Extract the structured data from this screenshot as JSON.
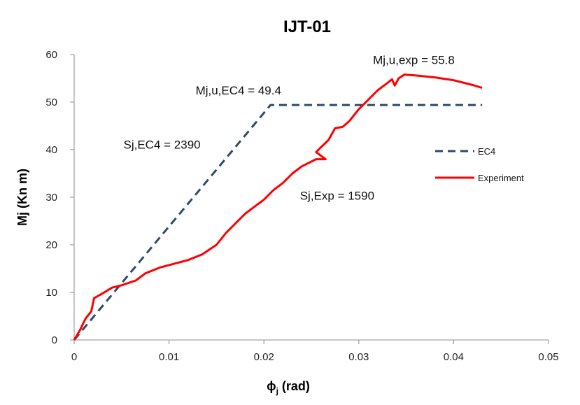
{
  "chart_data": {
    "type": "line",
    "title": "IJT-01",
    "xlabel_symbol": "ϕ",
    "xlabel_sub": "j",
    "xlabel_rest": " (rad)",
    "ylabel": "Mj (Kn m)",
    "xlim": [
      0,
      0.05
    ],
    "ylim": [
      0,
      60
    ],
    "xticks": [
      0,
      0.01,
      0.02,
      0.03,
      0.04,
      0.05
    ],
    "xtick_labels": [
      "0",
      "0.01",
      "0.02",
      "0.03",
      "0.04",
      "0.05"
    ],
    "yticks": [
      0,
      10,
      20,
      30,
      40,
      50,
      60
    ],
    "ytick_labels": [
      "0",
      "10",
      "20",
      "30",
      "40",
      "50",
      "60"
    ],
    "grid": false,
    "legend_position": "right",
    "series": [
      {
        "name": "EC4",
        "color": "#2f4a6d",
        "style": "dashed",
        "points": [
          [
            0.0,
            0.0
          ],
          [
            0.0207,
            49.4
          ],
          [
            0.043,
            49.4
          ]
        ]
      },
      {
        "name": "Experiment",
        "color": "#ff0000",
        "style": "solid",
        "points": [
          [
            0.0,
            0.0
          ],
          [
            0.0006,
            2.0
          ],
          [
            0.0012,
            4.5
          ],
          [
            0.0018,
            6.0
          ],
          [
            0.0021,
            8.8
          ],
          [
            0.003,
            9.8
          ],
          [
            0.004,
            11.0
          ],
          [
            0.005,
            11.5
          ],
          [
            0.0065,
            12.5
          ],
          [
            0.0075,
            14.0
          ],
          [
            0.009,
            15.2
          ],
          [
            0.0105,
            16.0
          ],
          [
            0.012,
            16.8
          ],
          [
            0.0135,
            18.0
          ],
          [
            0.015,
            20.0
          ],
          [
            0.016,
            22.5
          ],
          [
            0.017,
            24.5
          ],
          [
            0.018,
            26.5
          ],
          [
            0.019,
            28.0
          ],
          [
            0.02,
            29.5
          ],
          [
            0.021,
            31.5
          ],
          [
            0.022,
            33.0
          ],
          [
            0.023,
            35.0
          ],
          [
            0.024,
            36.5
          ],
          [
            0.025,
            37.5
          ],
          [
            0.0255,
            38.0
          ],
          [
            0.0265,
            38.0
          ],
          [
            0.0255,
            39.5
          ],
          [
            0.026,
            40.5
          ],
          [
            0.0268,
            42.0
          ],
          [
            0.0275,
            44.5
          ],
          [
            0.0283,
            44.8
          ],
          [
            0.029,
            46.0
          ],
          [
            0.03,
            48.5
          ],
          [
            0.031,
            50.5
          ],
          [
            0.032,
            52.5
          ],
          [
            0.033,
            54.0
          ],
          [
            0.0335,
            54.8
          ],
          [
            0.0338,
            53.5
          ],
          [
            0.0342,
            55.0
          ],
          [
            0.0348,
            55.8
          ],
          [
            0.036,
            55.6
          ],
          [
            0.038,
            55.2
          ],
          [
            0.04,
            54.6
          ],
          [
            0.042,
            53.6
          ],
          [
            0.043,
            53.0
          ]
        ]
      }
    ],
    "annotations": [
      {
        "text": "Mj,u,exp = 55.8",
        "at": [
          0.0315,
          58.0
        ]
      },
      {
        "text": "Mj,u,EC4 = 49.4",
        "at": [
          0.0128,
          51.6
        ]
      },
      {
        "text": "Sj,EC4 = 2390",
        "at": [
          0.0052,
          40.2
        ]
      },
      {
        "text": "Sj,Exp = 1590",
        "at": [
          0.0238,
          29.5
        ]
      }
    ]
  }
}
